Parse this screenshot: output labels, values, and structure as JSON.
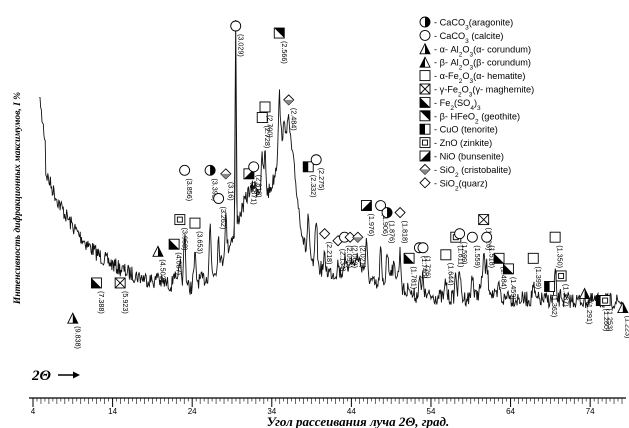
{
  "chart_data": {
    "type": "line",
    "title": "",
    "xlabel": "Угол рассеивания  луча 2Θ, град.",
    "ylabel": "Интенсивность дифракционных максимумов, I %",
    "direction_marker": "2Θ",
    "xlim": [
      4,
      78
    ],
    "x_ticks": [
      4,
      14,
      24,
      34,
      44,
      54,
      64,
      74
    ],
    "grid": false,
    "legend_position": "top-right",
    "legend": [
      {
        "key": "aragonite",
        "symbol": "half-circle",
        "label": "- CaCO3(aragonite)"
      },
      {
        "key": "calcite",
        "symbol": "circle",
        "label": "- CaCO3 (calcite)"
      },
      {
        "key": "a_corundum",
        "symbol": "half-triangle",
        "label": "- α- Al2O3(α- corundum)"
      },
      {
        "key": "b_corundum",
        "symbol": "triangle-part",
        "label": "- β- Al2O3(β- corundum)"
      },
      {
        "key": "hematite",
        "symbol": "square",
        "label": "- α-Fe2O3(α- hematite)"
      },
      {
        "key": "maghemite",
        "symbol": "crossed-square",
        "label": "- γ-Fe2O3(γ- maghemite)"
      },
      {
        "key": "fe_sulfate",
        "symbol": "diag-square",
        "label": "- Fe2(SO4)3"
      },
      {
        "key": "goethite",
        "symbol": "diag-square-alt",
        "label": "- β- HFeO2 (geothite)"
      },
      {
        "key": "tenorite",
        "symbol": "half-square",
        "label": "- CuO (tenorite)"
      },
      {
        "key": "zinkite",
        "symbol": "nested-square",
        "label": "- ZnO (zinkite)"
      },
      {
        "key": "bunsenite",
        "symbol": "triangle-square",
        "label": "- NiO (bunsenite)"
      },
      {
        "key": "cristobalite",
        "symbol": "half-diamond",
        "label": "- SiO2 (cristobalite)"
      },
      {
        "key": "quartz",
        "symbol": "diamond",
        "label": "- SiO2(quarz)"
      }
    ],
    "peaks": [
      {
        "d": "(9.838)",
        "x": 9.0,
        "y": 0.83,
        "phases": [
          "a_corundum"
        ]
      },
      {
        "d": "(7.388)",
        "x": 11.97,
        "y": 0.73,
        "phases": [
          "fe_sulfate"
        ]
      },
      {
        "d": "(5.923)",
        "x": 14.95,
        "y": 0.73,
        "phases": [
          "maghemite"
        ]
      },
      {
        "d": "(4.502)",
        "x": 19.7,
        "y": 0.64,
        "phases": [
          "a_corundum"
        ]
      },
      {
        "d": "(4.087)",
        "x": 21.73,
        "y": 0.62,
        "phases": [
          "fe_sulfate"
        ]
      },
      {
        "d": "(3.958)",
        "x": 22.45,
        "y": 0.55,
        "phases": [
          "zinkite"
        ]
      },
      {
        "d": "(3.856)",
        "x": 23.05,
        "y": 0.41,
        "phases": [
          "calcite"
        ]
      },
      {
        "d": "(3.653)",
        "x": 24.35,
        "y": 0.56,
        "phases": [
          "hematite"
        ]
      },
      {
        "d": "(3.392)",
        "x": 26.25,
        "y": 0.41,
        "phases": [
          "aragonite"
        ]
      },
      {
        "d": "(3.262)",
        "x": 27.32,
        "y": 0.49,
        "phases": [
          "calcite"
        ]
      },
      {
        "d": "(3.16)",
        "x": 28.22,
        "y": 0.42,
        "phases": [
          "cristobalite"
        ]
      },
      {
        "d": "(3.029)",
        "x": 29.47,
        "y": 0.0,
        "phases": [
          "calcite"
        ]
      },
      {
        "d": "(2.871)",
        "x": 31.13,
        "y": 0.42,
        "phases": [
          "bunsenite"
        ]
      },
      {
        "d": "(2.818)",
        "x": 31.73,
        "y": 0.4,
        "phases": [
          "calcite"
        ]
      },
      {
        "d": "(2.728)",
        "x": 32.8,
        "y": 0.26,
        "phases": [
          "hematite"
        ]
      },
      {
        "d": "(2.700)",
        "x": 33.15,
        "y": 0.23,
        "phases": [
          "hematite"
        ]
      },
      {
        "d": "(2.566)",
        "x": 34.94,
        "y": 0.02,
        "phases": [
          "goethite"
        ]
      },
      {
        "d": "(2.484)",
        "x": 36.13,
        "y": 0.21,
        "phases": [
          "cristobalite"
        ]
      },
      {
        "d": "(2.332)",
        "x": 38.58,
        "y": 0.4,
        "phases": [
          "tenorite"
        ]
      },
      {
        "d": "(2.275)",
        "x": 39.58,
        "y": 0.38,
        "phases": [
          "calcite"
        ]
      },
      {
        "d": "(2.218)",
        "x": 40.64,
        "y": 0.59,
        "phases": [
          "quartz"
        ]
      },
      {
        "d": "(2.134)",
        "x": 42.32,
        "y": 0.61,
        "phases": [
          "quartz"
        ]
      },
      {
        "d": "(2.095)",
        "x": 43.14,
        "y": 0.6,
        "phases": [
          "calcite"
        ]
      },
      {
        "d": "(2.063)",
        "x": 43.84,
        "y": 0.6,
        "phases": [
          "quartz"
        ]
      },
      {
        "d": "(2.021)",
        "x": 44.81,
        "y": 0.6,
        "phases": [
          "cristobalite"
        ]
      },
      {
        "d": "(1.976)",
        "x": 45.89,
        "y": 0.51,
        "phases": [
          "bunsenite"
        ]
      },
      {
        "d": "(1.906)",
        "x": 47.67,
        "y": 0.51,
        "phases": [
          "calcite"
        ]
      },
      {
        "d": "(1.876)",
        "x": 48.48,
        "y": 0.53,
        "phases": [
          "aragonite"
        ]
      },
      {
        "d": "(1.818)",
        "x": 50.12,
        "y": 0.53,
        "phases": [
          "quartz"
        ]
      },
      {
        "d": "(1.781)",
        "x": 51.25,
        "y": 0.66,
        "phases": [
          "fe_sulfate"
        ]
      },
      {
        "d": "(1.740)",
        "x": 52.55,
        "y": 0.63,
        "phases": [
          "aragonite"
        ]
      },
      {
        "d": "(1.726)",
        "x": 53.0,
        "y": 0.63,
        "phases": [
          "calcite"
        ]
      },
      {
        "d": "(1.644)",
        "x": 55.87,
        "y": 0.65,
        "phases": [
          "hematite"
        ]
      },
      {
        "d": "(1.611)",
        "x": 57.12,
        "y": 0.6,
        "phases": [
          "zinkite"
        ]
      },
      {
        "d": "(1.599)",
        "x": 57.6,
        "y": 0.59,
        "phases": [
          "calcite"
        ]
      },
      {
        "d": "(1.559)",
        "x": 59.2,
        "y": 0.6,
        "phases": [
          "calcite"
        ]
      },
      {
        "d": "(1.526)",
        "x": 60.62,
        "y": 0.55,
        "phases": [
          "maghemite"
        ]
      },
      {
        "d": "(1.518)",
        "x": 61.0,
        "y": 0.6,
        "phases": [
          "calcite"
        ]
      },
      {
        "d": "(1.484)",
        "x": 62.55,
        "y": 0.66,
        "phases": [
          "fe_sulfate"
        ]
      },
      {
        "d": "(1.459)",
        "x": 63.73,
        "y": 0.69,
        "phases": [
          "fe_sulfate"
        ]
      },
      {
        "d": "(1.399)",
        "x": 66.85,
        "y": 0.66,
        "phases": [
          "hematite"
        ]
      },
      {
        "d": "(1.362)",
        "x": 68.9,
        "y": 0.74,
        "phases": [
          "tenorite"
        ]
      },
      {
        "d": "(1.350)",
        "x": 69.6,
        "y": 0.6,
        "phases": [
          "hematite"
        ]
      },
      {
        "d": "(1.337)",
        "x": 70.35,
        "y": 0.71,
        "phases": [
          "zinkite"
        ]
      },
      {
        "d": "(1.291)",
        "x": 73.3,
        "y": 0.76,
        "phases": [
          "a_corundum"
        ]
      },
      {
        "d": "(1.260)",
        "x": 75.4,
        "y": 0.78,
        "phases": [
          "tenorite"
        ]
      },
      {
        "d": "(1.253)",
        "x": 75.88,
        "y": 0.78,
        "phases": [
          "zinkite"
        ]
      },
      {
        "d": "(1.223)",
        "x": 78.1,
        "y": 0.8,
        "phases": [
          "a_corundum"
        ]
      }
    ]
  }
}
